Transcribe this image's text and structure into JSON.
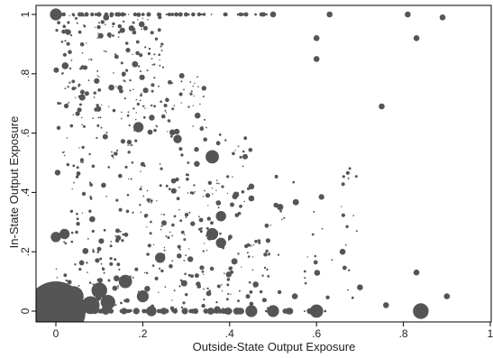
{
  "chart_data": {
    "type": "scatter",
    "title": "",
    "xlabel": "Outside-State Output Exposure",
    "ylabel": "In-State Output Exposure",
    "xlim": [
      0,
      1
    ],
    "ylim": [
      0,
      1
    ],
    "xticks": [
      {
        "value": 0,
        "label": "0"
      },
      {
        "value": 0.2,
        "label": ".2"
      },
      {
        "value": 0.4,
        "label": ".4"
      },
      {
        "value": 0.6,
        "label": ".6"
      },
      {
        "value": 0.8,
        "label": ".8"
      },
      {
        "value": 1,
        "label": "1"
      }
    ],
    "yticks": [
      {
        "value": 0,
        "label": "0"
      },
      {
        "value": 0.2,
        "label": ".2"
      },
      {
        "value": 0.4,
        "label": ".4"
      },
      {
        "value": 0.6,
        "label": ".6"
      },
      {
        "value": 0.8,
        "label": ".8"
      },
      {
        "value": 1,
        "label": "1"
      }
    ],
    "grid": false,
    "marker_color": "#555555",
    "size_encoding": "marker area proportional to weight",
    "highlighted_points": [
      {
        "x": 0.0,
        "y": 0.0,
        "weight": 100
      },
      {
        "x": 0.0,
        "y": 1.0,
        "weight": 4
      },
      {
        "x": 0.0,
        "y": 0.25,
        "weight": 3
      },
      {
        "x": 0.02,
        "y": 0.26,
        "weight": 3
      },
      {
        "x": 0.04,
        "y": 0.05,
        "weight": 12
      },
      {
        "x": 0.08,
        "y": 0.02,
        "weight": 9
      },
      {
        "x": 0.1,
        "y": 0.07,
        "weight": 7
      },
      {
        "x": 0.12,
        "y": 0.03,
        "weight": 6
      },
      {
        "x": 0.16,
        "y": 0.1,
        "weight": 5
      },
      {
        "x": 0.19,
        "y": 0.62,
        "weight": 3
      },
      {
        "x": 0.2,
        "y": 0.05,
        "weight": 4
      },
      {
        "x": 0.22,
        "y": 0.0,
        "weight": 3
      },
      {
        "x": 0.24,
        "y": 0.18,
        "weight": 3
      },
      {
        "x": 0.28,
        "y": 0.58,
        "weight": 2
      },
      {
        "x": 0.36,
        "y": 0.52,
        "weight": 5
      },
      {
        "x": 0.36,
        "y": 0.26,
        "weight": 4
      },
      {
        "x": 0.38,
        "y": 0.23,
        "weight": 3
      },
      {
        "x": 0.38,
        "y": 0.32,
        "weight": 3
      },
      {
        "x": 0.45,
        "y": 0.0,
        "weight": 4
      },
      {
        "x": 0.5,
        "y": 0.0,
        "weight": 4
      },
      {
        "x": 0.6,
        "y": 0.0,
        "weight": 5
      },
      {
        "x": 0.84,
        "y": 0.0,
        "weight": 7
      },
      {
        "x": 0.6,
        "y": 0.92,
        "weight": 1
      },
      {
        "x": 0.6,
        "y": 0.85,
        "weight": 1
      },
      {
        "x": 0.5,
        "y": 1.0,
        "weight": 1
      },
      {
        "x": 0.63,
        "y": 1.0,
        "weight": 1
      },
      {
        "x": 0.81,
        "y": 1.0,
        "weight": 1
      },
      {
        "x": 0.83,
        "y": 0.92,
        "weight": 1
      },
      {
        "x": 0.89,
        "y": 0.99,
        "weight": 1
      },
      {
        "x": 0.45,
        "y": 0.42,
        "weight": 1
      },
      {
        "x": 0.45,
        "y": 0.38,
        "weight": 1
      },
      {
        "x": 0.46,
        "y": 0.09,
        "weight": 1
      },
      {
        "x": 0.55,
        "y": 0.05,
        "weight": 1
      },
      {
        "x": 0.66,
        "y": 0.2,
        "weight": 1
      },
      {
        "x": 0.7,
        "y": 0.08,
        "weight": 1
      },
      {
        "x": 0.75,
        "y": 0.69,
        "weight": 1
      },
      {
        "x": 0.76,
        "y": 0.02,
        "weight": 1
      },
      {
        "x": 0.83,
        "y": 0.13,
        "weight": 1
      },
      {
        "x": 0.9,
        "y": 0.05,
        "weight": 1
      }
    ],
    "dense_background": {
      "description_free": true,
      "regions": [
        {
          "x_range": [
            0,
            0.5
          ],
          "y_range": [
            0,
            0.3
          ],
          "density": 0.9
        },
        {
          "x_range": [
            0,
            0.45
          ],
          "y_range": [
            0.3,
            0.6
          ],
          "density": 0.6
        },
        {
          "x_range": [
            0,
            0.35
          ],
          "y_range": [
            0.6,
            0.8
          ],
          "density": 0.5
        },
        {
          "x_range": [
            0,
            0.25
          ],
          "y_range": [
            0.8,
            1.0
          ],
          "density": 0.4
        },
        {
          "x_range": [
            0.5,
            0.7
          ],
          "y_range": [
            0,
            0.5
          ],
          "density": 0.15
        }
      ]
    }
  }
}
